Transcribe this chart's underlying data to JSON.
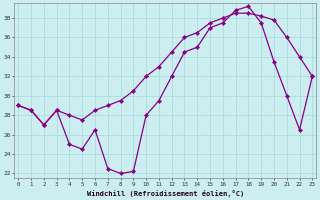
{
  "xlabel": "Windchill (Refroidissement éolien,°C)",
  "background_color": "#cceef0",
  "line_color": "#880088",
  "grid_color": "#aadddd",
  "line1_x": [
    0,
    1,
    2,
    3,
    4,
    5,
    6,
    7,
    8,
    9,
    10,
    11,
    12,
    13,
    14,
    15,
    16,
    17,
    18,
    19,
    20,
    21,
    22,
    23
  ],
  "line1_y": [
    29.0,
    28.5,
    27.0,
    28.5,
    28.0,
    27.5,
    28.5,
    29.0,
    29.5,
    30.5,
    32.0,
    33.0,
    34.5,
    36.0,
    36.5,
    37.5,
    38.0,
    38.5,
    38.5,
    38.2,
    37.8,
    36.0,
    34.0,
    32.0
  ],
  "line2_x": [
    0,
    1,
    2,
    3,
    4,
    5,
    6,
    7,
    8,
    9,
    10,
    11,
    12,
    13,
    14,
    15,
    16,
    17,
    18,
    19,
    20,
    21,
    22,
    23
  ],
  "line2_y": [
    29.0,
    28.5,
    27.0,
    28.5,
    25.0,
    24.5,
    26.5,
    22.5,
    22.0,
    22.2,
    28.0,
    29.5,
    32.0,
    34.5,
    35.0,
    37.0,
    37.5,
    38.8,
    39.2,
    37.5,
    33.5,
    30.0,
    26.5,
    32.0
  ],
  "ylim": [
    21.5,
    39.5
  ],
  "xlim": [
    -0.3,
    23.3
  ],
  "yticks": [
    22,
    24,
    26,
    28,
    30,
    32,
    34,
    36,
    38
  ],
  "xticks": [
    0,
    1,
    2,
    3,
    4,
    5,
    6,
    7,
    8,
    9,
    10,
    11,
    12,
    13,
    14,
    15,
    16,
    17,
    18,
    19,
    20,
    21,
    22,
    23
  ]
}
